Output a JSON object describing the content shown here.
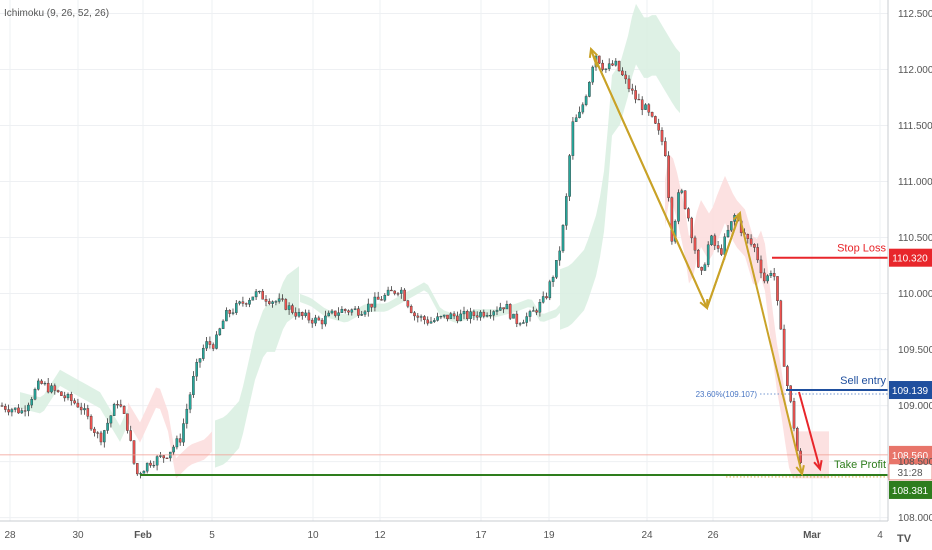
{
  "indicator_label": "Ichimoku (9, 26, 52, 26)",
  "colors": {
    "bull": "#26a69a",
    "bear": "#ef5350",
    "grid": "#eef0f3",
    "axis": "#c8ccd2",
    "stop_loss": "#e8262b",
    "sell_entry": "#1f4f9e",
    "take_profit": "#2e7d1d",
    "price_line": "#f19a8f",
    "arrow_gold": "#c9a227",
    "arrow_red": "#e8262b",
    "cloud_green": "#d8efe0",
    "cloud_red": "#fbdcdc"
  },
  "chart_data": {
    "type": "candlestick",
    "title": "",
    "xlabel": "",
    "ylabel": "",
    "ylim": [
      107.97,
      112.62
    ],
    "y_ticks": [
      "112.500",
      "112.000",
      "111.500",
      "111.000",
      "110.500",
      "110.000",
      "109.500",
      "109.000",
      "108.500",
      "108.000"
    ],
    "x_tick_labels": [
      "28",
      "30",
      "Feb",
      "5",
      "10",
      "12",
      "17",
      "19",
      "24",
      "26",
      "Mar",
      "4"
    ],
    "x_tick_bold": [
      false,
      false,
      true,
      false,
      false,
      false,
      false,
      false,
      false,
      false,
      true,
      false
    ],
    "price_path": [
      [
        0,
        109.0
      ],
      [
        22,
        108.95
      ],
      [
        40,
        109.2
      ],
      [
        60,
        109.1
      ],
      [
        80,
        109.0
      ],
      [
        100,
        108.7
      ],
      [
        118,
        109.05
      ],
      [
        128,
        108.8
      ],
      [
        136,
        108.38
      ],
      [
        150,
        108.5
      ],
      [
        165,
        108.55
      ],
      [
        180,
        108.7
      ],
      [
        195,
        109.3
      ],
      [
        205,
        109.55
      ],
      [
        215,
        109.55
      ],
      [
        225,
        109.8
      ],
      [
        240,
        109.9
      ],
      [
        255,
        110.0
      ],
      [
        270,
        109.95
      ],
      [
        285,
        109.9
      ],
      [
        300,
        109.8
      ],
      [
        320,
        109.75
      ],
      [
        340,
        109.85
      ],
      [
        360,
        109.85
      ],
      [
        380,
        109.95
      ],
      [
        400,
        110.05
      ],
      [
        415,
        109.8
      ],
      [
        430,
        109.75
      ],
      [
        450,
        109.8
      ],
      [
        470,
        109.8
      ],
      [
        490,
        109.85
      ],
      [
        505,
        109.9
      ],
      [
        515,
        109.75
      ],
      [
        530,
        109.8
      ],
      [
        545,
        109.95
      ],
      [
        558,
        110.3
      ],
      [
        565,
        110.7
      ],
      [
        572,
        111.5
      ],
      [
        580,
        111.6
      ],
      [
        588,
        111.85
      ],
      [
        595,
        112.15
      ],
      [
        605,
        112.0
      ],
      [
        615,
        112.05
      ],
      [
        625,
        111.9
      ],
      [
        635,
        111.75
      ],
      [
        645,
        111.65
      ],
      [
        655,
        111.5
      ],
      [
        665,
        111.3
      ],
      [
        672,
        110.5
      ],
      [
        680,
        110.95
      ],
      [
        688,
        110.7
      ],
      [
        695,
        110.4
      ],
      [
        700,
        110.1
      ],
      [
        710,
        110.5
      ],
      [
        720,
        110.35
      ],
      [
        728,
        110.55
      ],
      [
        735,
        110.7
      ],
      [
        745,
        110.5
      ],
      [
        755,
        110.4
      ],
      [
        765,
        110.1
      ],
      [
        773,
        110.25
      ],
      [
        780,
        109.7
      ],
      [
        786,
        109.25
      ],
      [
        792,
        108.95
      ],
      [
        798,
        108.55
      ],
      [
        802,
        108.42
      ]
    ],
    "levels": [
      {
        "name": "Stop Loss",
        "value": 110.32,
        "label": "110.320"
      },
      {
        "name": "Sell entry",
        "value": 109.139,
        "label": "109.139"
      },
      {
        "name": "current price",
        "value": 108.56,
        "label": "108.560"
      },
      {
        "name": "Take Profit",
        "value": 108.381,
        "label": "108.381"
      }
    ],
    "countdown": "31:28",
    "fib_label": "23.60%(109.107)"
  },
  "annotations": {
    "stop_loss": "Stop Loss",
    "sell_entry": "Sell entry",
    "take_profit": "Take Profit"
  },
  "logo": "TV"
}
